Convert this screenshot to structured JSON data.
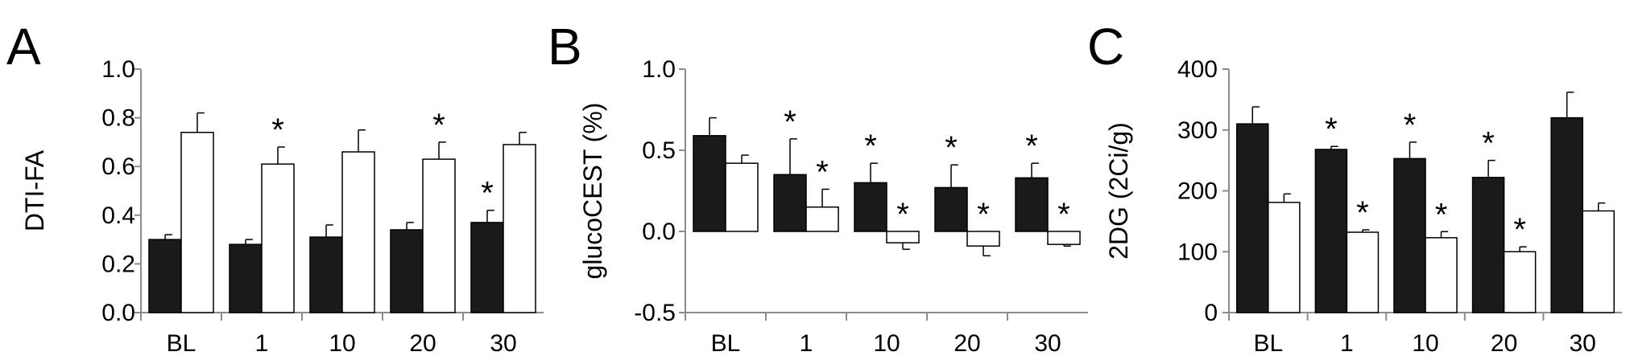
{
  "colors": {
    "dark_bar": "#1a1a1a",
    "light_bar": "#ffffff",
    "stroke": "#000000",
    "axis": "#8c8c8c"
  },
  "chart_data": [
    {
      "type": "bar",
      "panel_label": "A",
      "ylabel": "DTI-FA",
      "categories": [
        "BL",
        "1",
        "10",
        "20",
        "30"
      ],
      "ylim": [
        0.0,
        1.0
      ],
      "yticks": [
        0.0,
        0.2,
        0.4,
        0.6,
        0.8,
        1.0
      ],
      "ytick_labels": [
        "0.0",
        "0.2",
        "0.4",
        "0.6",
        "0.8",
        "1.0"
      ],
      "series": [
        {
          "name": "dark",
          "values": [
            0.3,
            0.28,
            0.31,
            0.34,
            0.37
          ],
          "errors": [
            0.02,
            0.02,
            0.05,
            0.03,
            0.05
          ],
          "stars": [
            false,
            false,
            false,
            false,
            true
          ]
        },
        {
          "name": "white",
          "values": [
            0.74,
            0.61,
            0.66,
            0.63,
            0.69
          ],
          "errors": [
            0.08,
            0.07,
            0.09,
            0.07,
            0.05
          ],
          "stars": [
            false,
            true,
            false,
            true,
            false
          ]
        }
      ],
      "star_symbol": "*"
    },
    {
      "type": "bar",
      "panel_label": "B",
      "ylabel": "glucoCEST (%)",
      "categories": [
        "BL",
        "1",
        "10",
        "20",
        "30"
      ],
      "ylim": [
        -0.5,
        1.0
      ],
      "yticks": [
        -0.5,
        0.0,
        0.5,
        1.0
      ],
      "ytick_labels": [
        "-0.5",
        "0.0",
        "0.5",
        "1.0"
      ],
      "series": [
        {
          "name": "dark",
          "values": [
            0.59,
            0.35,
            0.3,
            0.27,
            0.33
          ],
          "errors": [
            0.11,
            0.22,
            0.12,
            0.14,
            0.09
          ],
          "stars": [
            false,
            true,
            true,
            true,
            true
          ]
        },
        {
          "name": "white",
          "values": [
            0.42,
            0.15,
            -0.07,
            -0.09,
            -0.08
          ],
          "errors": [
            0.05,
            0.11,
            0.04,
            0.06,
            0.01
          ],
          "stars": [
            false,
            true,
            true,
            true,
            true
          ]
        }
      ],
      "star_symbol": "*"
    },
    {
      "type": "bar",
      "panel_label": "C",
      "ylabel": "2DG (2Ci/g)",
      "categories": [
        "BL",
        "1",
        "10",
        "20",
        "30"
      ],
      "ylim": [
        0,
        400
      ],
      "yticks": [
        0,
        100,
        200,
        300,
        400
      ],
      "ytick_labels": [
        "0",
        "100",
        "200",
        "300",
        "400"
      ],
      "series": [
        {
          "name": "dark",
          "values": [
            310,
            268,
            253,
            222,
            320
          ],
          "errors": [
            28,
            5,
            27,
            28,
            42
          ],
          "stars": [
            false,
            true,
            true,
            true,
            false
          ]
        },
        {
          "name": "white",
          "values": [
            181,
            132,
            123,
            100,
            167
          ],
          "errors": [
            14,
            4,
            10,
            8,
            13
          ],
          "stars": [
            false,
            true,
            true,
            true,
            false
          ]
        }
      ],
      "star_symbol": "*"
    }
  ]
}
